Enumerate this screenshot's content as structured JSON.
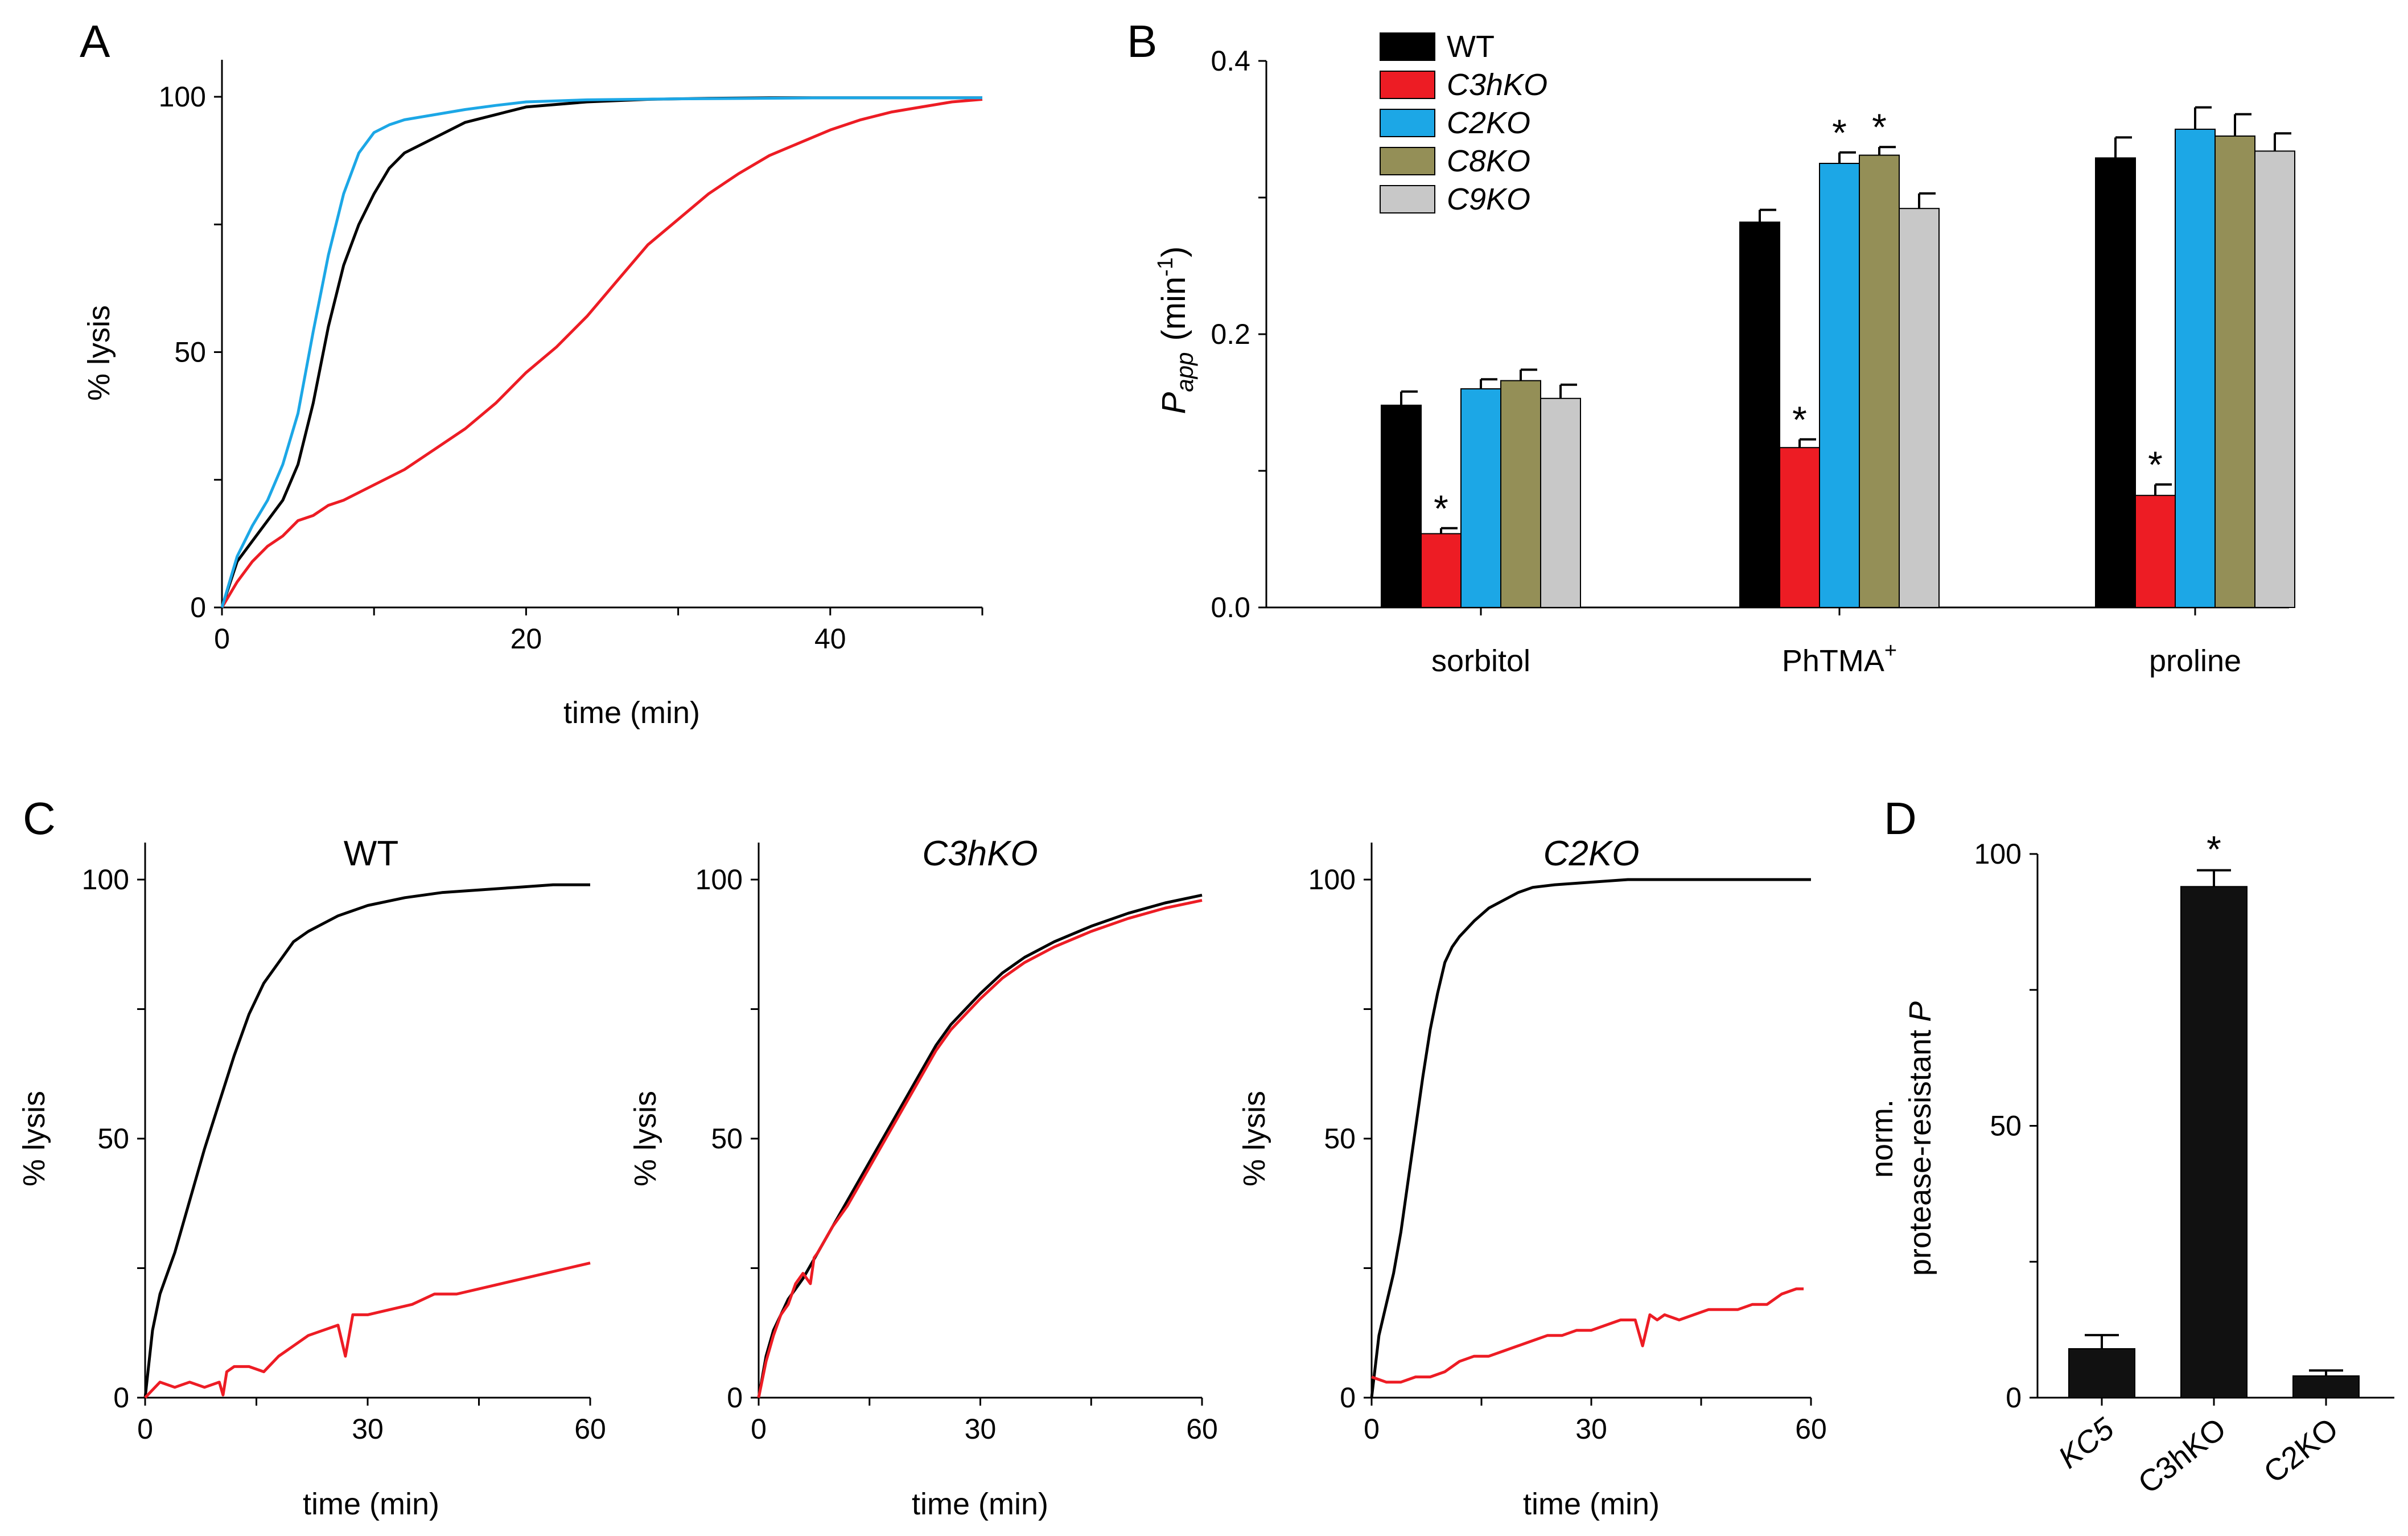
{
  "figure": {
    "colors": {
      "WT": "#000000",
      "C3hKO": "#ed1c24",
      "C2KO": "#1ca7e6",
      "C8KO": "#948f57",
      "C9KO": "#c8c8c8"
    }
  },
  "chart_data": [
    {
      "panel": "A",
      "type": "line",
      "title": "",
      "xlabel": "time (min)",
      "ylabel": "% lysis",
      "xlim": [
        0,
        50
      ],
      "ylim": [
        0,
        100
      ],
      "xticks": [
        0,
        20,
        40
      ],
      "yticks": [
        0,
        50,
        100
      ],
      "series": [
        {
          "name": "WT",
          "color": "#000000",
          "x": [
            0,
            1,
            2,
            3,
            4,
            5,
            6,
            7,
            8,
            9,
            10,
            11,
            12,
            14,
            16,
            18,
            20,
            24,
            28,
            32,
            36,
            40,
            45,
            50
          ],
          "y": [
            0,
            9,
            13,
            17,
            21,
            28,
            40,
            55,
            67,
            75,
            81,
            86,
            89,
            92,
            95,
            96.5,
            98,
            99,
            99.5,
            99.7,
            99.8,
            99.8,
            99.8,
            99.8
          ]
        },
        {
          "name": "C3hKO",
          "color": "#ed1c24",
          "x": [
            0,
            1,
            2,
            3,
            4,
            5,
            6,
            7,
            8,
            10,
            12,
            14,
            16,
            18,
            20,
            22,
            24,
            26,
            28,
            30,
            32,
            34,
            36,
            38,
            40,
            42,
            44,
            46,
            48,
            50
          ],
          "y": [
            0,
            5,
            9,
            12,
            14,
            17,
            18,
            20,
            21,
            24,
            27,
            31,
            35,
            40,
            46,
            51,
            57,
            64,
            71,
            76,
            81,
            85,
            88.5,
            91,
            93.5,
            95.5,
            97,
            98,
            99,
            99.5
          ]
        },
        {
          "name": "C2KO",
          "color": "#1ca7e6",
          "x": [
            0,
            1,
            2,
            3,
            4,
            5,
            6,
            7,
            8,
            9,
            10,
            11,
            12,
            14,
            16,
            18,
            20,
            24,
            30,
            40,
            50
          ],
          "y": [
            0,
            10,
            16,
            21,
            28,
            38,
            54,
            69,
            81,
            89,
            93,
            94.5,
            95.5,
            96.5,
            97.5,
            98.3,
            99,
            99.4,
            99.6,
            99.8,
            99.8
          ]
        }
      ]
    },
    {
      "panel": "B",
      "type": "bar",
      "title": "",
      "xlabel": "",
      "ylabel_main": "P",
      "ylabel_sub": "app",
      "ylabel_unit": "(min",
      "ylabel_exp": "-1",
      "ylabel_close": ")",
      "ylim": [
        0,
        0.4
      ],
      "yticks": [
        "0.0",
        "0.2",
        "0.4"
      ],
      "categories": [
        "sorbitol",
        "PhTMA",
        "proline"
      ],
      "category_sup": [
        "",
        "+",
        ""
      ],
      "series": [
        {
          "name": "WT",
          "values": [
            0.148,
            0.282,
            0.329
          ],
          "errors": [
            0.01,
            0.009,
            0.015
          ],
          "significant": [
            false,
            false,
            false
          ]
        },
        {
          "name": "C3hKO",
          "values": [
            0.054,
            0.117,
            0.082
          ],
          "errors": [
            0.004,
            0.006,
            0.008
          ],
          "significant": [
            true,
            true,
            true
          ]
        },
        {
          "name": "C2KO",
          "values": [
            0.16,
            0.325,
            0.35
          ],
          "errors": [
            0.007,
            0.008,
            0.016
          ],
          "significant": [
            false,
            true,
            false
          ]
        },
        {
          "name": "C8KO",
          "values": [
            0.166,
            0.331,
            0.345
          ],
          "errors": [
            0.008,
            0.006,
            0.016
          ],
          "significant": [
            false,
            true,
            false
          ]
        },
        {
          "name": "C9KO",
          "values": [
            0.153,
            0.292,
            0.334
          ],
          "errors": [
            0.01,
            0.011,
            0.013
          ],
          "significant": [
            false,
            false,
            false
          ]
        }
      ],
      "legend": [
        "WT",
        "C3hKO",
        "C2KO",
        "C8KO",
        "C9KO"
      ],
      "significance_marker": "*"
    },
    {
      "panel": "C",
      "type": "line",
      "title": "WT",
      "xlabel": "time (min)",
      "ylabel": "% lysis",
      "xlim": [
        0,
        60
      ],
      "ylim": [
        0,
        100
      ],
      "xticks": [
        0,
        30,
        60
      ],
      "yticks": [
        0,
        50,
        100
      ],
      "series": [
        {
          "name": "black",
          "color": "#000000",
          "x": [
            0,
            1,
            2,
            3,
            4,
            5,
            6,
            8,
            10,
            12,
            14,
            16,
            18,
            20,
            22,
            24,
            26,
            28,
            30,
            35,
            40,
            45,
            50,
            55,
            60
          ],
          "y": [
            0,
            13,
            20,
            24,
            28,
            33,
            38,
            48,
            57,
            66,
            74,
            80,
            84,
            88,
            90,
            91.5,
            93,
            94,
            95,
            96.5,
            97.5,
            98,
            98.5,
            99,
            99
          ]
        },
        {
          "name": "red",
          "color": "#ed1c24",
          "x": [
            0,
            2,
            4,
            6,
            8,
            10,
            10.5,
            11,
            12,
            14,
            16,
            18,
            20,
            22,
            24,
            26,
            27,
            28,
            30,
            33,
            36,
            39,
            42,
            45,
            48,
            51,
            54,
            57,
            60
          ],
          "y": [
            0,
            3,
            2,
            3,
            2,
            3,
            0.5,
            5,
            6,
            6,
            5,
            8,
            10,
            12,
            13,
            14,
            8,
            16,
            16,
            17,
            18,
            20,
            20,
            21,
            22,
            23,
            24,
            25,
            26
          ]
        }
      ]
    },
    {
      "panel": "C",
      "type": "line",
      "title": "C3hKO",
      "xlabel": "time (min)",
      "ylabel": "% lysis",
      "xlim": [
        0,
        60
      ],
      "ylim": [
        0,
        100
      ],
      "xticks": [
        0,
        30,
        60
      ],
      "yticks": [
        0,
        50,
        100
      ],
      "series": [
        {
          "name": "black",
          "color": "#000000",
          "x": [
            0,
            1,
            2,
            3,
            4,
            5,
            6,
            8,
            10,
            12,
            14,
            16,
            18,
            20,
            22,
            24,
            26,
            28,
            30,
            33,
            36,
            40,
            45,
            50,
            55,
            60
          ],
          "y": [
            0,
            8,
            13,
            16,
            19,
            21,
            23,
            28,
            33,
            38,
            43,
            48,
            53,
            58,
            63,
            68,
            72,
            75,
            78,
            82,
            85,
            88,
            91,
            93.5,
            95.5,
            97
          ]
        },
        {
          "name": "red",
          "color": "#ed1c24",
          "x": [
            0,
            1,
            2,
            3,
            4,
            5,
            6,
            7,
            7.5,
            8,
            10,
            12,
            14,
            16,
            18,
            20,
            22,
            24,
            26,
            28,
            30,
            33,
            36,
            40,
            45,
            50,
            55,
            60
          ],
          "y": [
            0,
            7,
            12,
            16,
            18,
            22,
            24,
            22,
            27,
            28,
            33,
            37,
            42,
            47,
            52,
            57,
            62,
            67,
            71,
            74,
            77,
            81,
            84,
            87,
            90,
            92.5,
            94.5,
            96
          ]
        }
      ]
    },
    {
      "panel": "C",
      "type": "line",
      "title": "C2KO",
      "xlabel": "time (min)",
      "ylabel": "% lysis",
      "xlim": [
        0,
        60
      ],
      "ylim": [
        0,
        100
      ],
      "xticks": [
        0,
        30,
        60
      ],
      "yticks": [
        0,
        50,
        100
      ],
      "series": [
        {
          "name": "black",
          "color": "#000000",
          "x": [
            0,
            1,
            2,
            3,
            4,
            5,
            6,
            7,
            8,
            9,
            10,
            11,
            12,
            14,
            16,
            18,
            20,
            22,
            25,
            30,
            35,
            40,
            50,
            60
          ],
          "y": [
            0,
            12,
            18,
            24,
            32,
            42,
            52,
            62,
            71,
            78,
            84,
            87,
            89,
            92,
            94.5,
            96,
            97.5,
            98.5,
            99,
            99.5,
            100,
            100,
            100,
            100
          ]
        },
        {
          "name": "red",
          "color": "#ed1c24",
          "x": [
            0,
            2,
            4,
            6,
            8,
            10,
            12,
            14,
            16,
            18,
            20,
            22,
            24,
            26,
            28,
            30,
            32,
            34,
            36,
            37,
            38,
            39,
            40,
            42,
            44,
            46,
            48,
            50,
            52,
            54,
            56,
            58,
            59
          ],
          "y": [
            4,
            3,
            3,
            4,
            4,
            5,
            7,
            8,
            8,
            9,
            10,
            11,
            12,
            12,
            13,
            13,
            14,
            15,
            15,
            10,
            16,
            15,
            16,
            15,
            16,
            17,
            17,
            17,
            18,
            18,
            20,
            21,
            21
          ]
        }
      ]
    },
    {
      "panel": "D",
      "type": "bar",
      "title": "",
      "ylabel_line1": "norm.",
      "ylabel_line2": "protease-resistant",
      "ylabel_var": "P",
      "ylim": [
        0,
        100
      ],
      "yticks": [
        0,
        50,
        100
      ],
      "categories": [
        "KC5",
        "C3hKO",
        "C2KO"
      ],
      "values": [
        9,
        94,
        4
      ],
      "errors": [
        2.5,
        3,
        1
      ],
      "significant": [
        false,
        true,
        false
      ],
      "significance_marker": "*"
    }
  ],
  "panel_letters": [
    "A",
    "B",
    "C",
    "D"
  ]
}
